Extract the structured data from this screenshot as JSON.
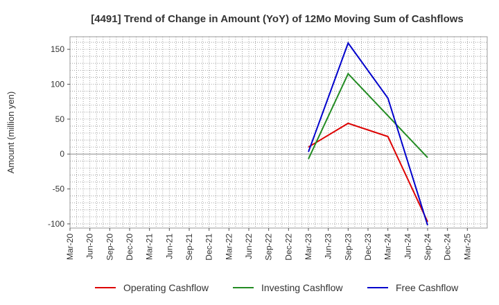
{
  "chart_data": {
    "type": "line",
    "title": "[4491]  Trend of Change in Amount (YoY) of 12Mo Moving Sum of Cashflows",
    "xlabel": "",
    "ylabel": "Amount (million yen)",
    "ylim": [
      -106,
      168
    ],
    "yticks": [
      150,
      100,
      50,
      0,
      -50,
      -100
    ],
    "ytick_labels": [
      "150",
      "100",
      "50",
      "0",
      "-50",
      "-100"
    ],
    "categories": [
      "Mar-20",
      "Jun-20",
      "Sep-20",
      "Dec-20",
      "Mar-21",
      "Jun-21",
      "Sep-21",
      "Dec-21",
      "Mar-22",
      "Jun-22",
      "Sep-22",
      "Dec-22",
      "Mar-23",
      "Jun-23",
      "Sep-23",
      "Dec-23",
      "Mar-24",
      "Jun-24",
      "Sep-24",
      "Dec-24",
      "Mar-25"
    ],
    "grid": true,
    "legend_position": "bottom",
    "series": [
      {
        "name": "Operating Cashflow",
        "color": "#dd0000",
        "points": [
          [
            "Mar-23",
            10
          ],
          [
            "Sep-23",
            44
          ],
          [
            "Mar-24",
            25
          ],
          [
            "Sep-24",
            -97
          ]
        ]
      },
      {
        "name": "Investing Cashflow",
        "color": "#228b22",
        "points": [
          [
            "Mar-23",
            -7
          ],
          [
            "Sep-23",
            115
          ],
          [
            "Sep-24",
            -5
          ]
        ]
      },
      {
        "name": "Free Cashflow",
        "color": "#0000cc",
        "points": [
          [
            "Mar-23",
            3
          ],
          [
            "Sep-23",
            159
          ],
          [
            "Mar-24",
            80
          ],
          [
            "Sep-24",
            -102
          ]
        ]
      }
    ]
  }
}
